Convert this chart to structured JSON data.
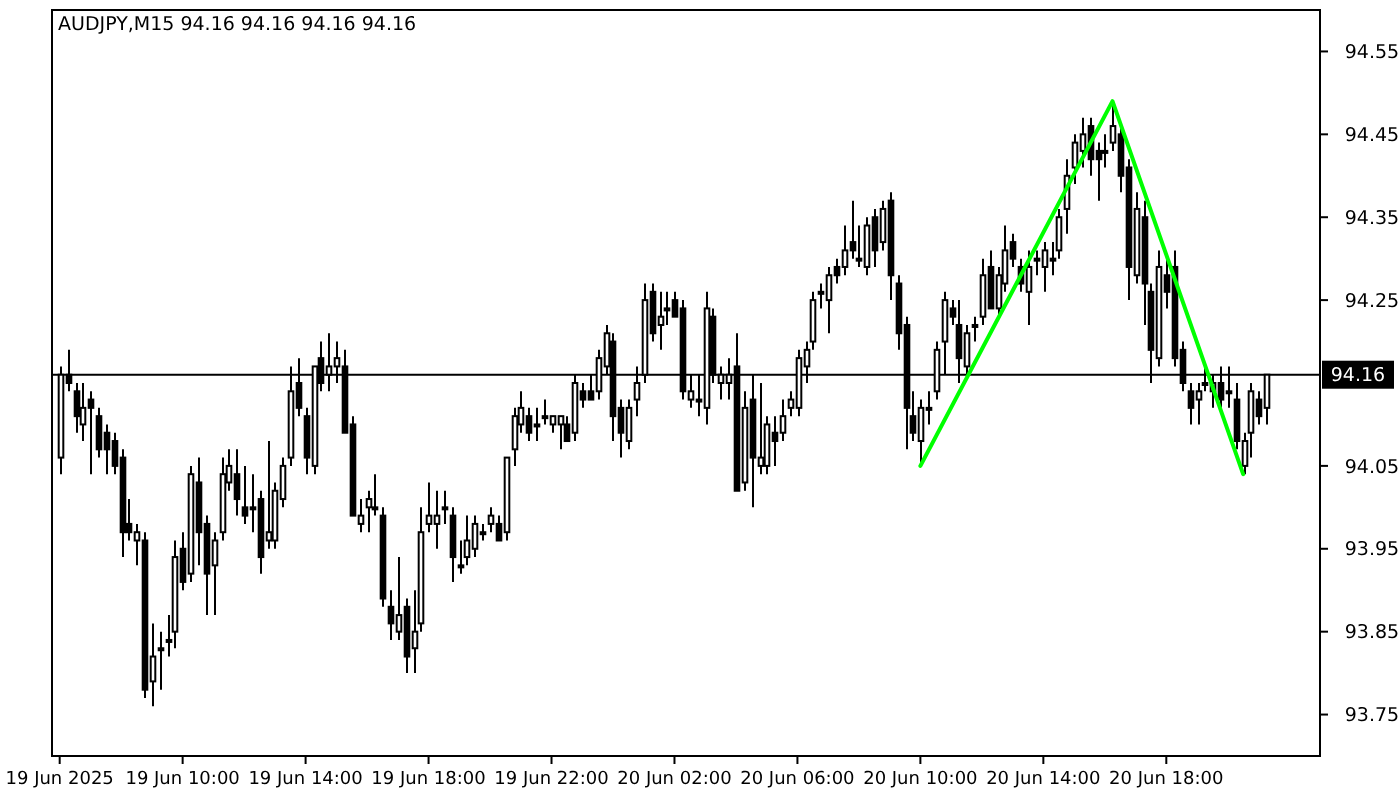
{
  "chart_data": {
    "type": "candlestick",
    "title": "AUDJPY,M15  94.16 94.16 94.16 94.16",
    "x": [
      "2025-06-19T06:00",
      "2025-06-19T06:15",
      "2025-06-19T06:30",
      "2025-06-19T06:45",
      "2025-06-19T07:00",
      "2025-06-19T07:15",
      "2025-06-19T07:30",
      "2025-06-19T07:45",
      "2025-06-19T08:00",
      "2025-06-19T08:15",
      "2025-06-19T08:30",
      "2025-06-19T08:45",
      "2025-06-19T09:00",
      "2025-06-19T09:15",
      "2025-06-19T09:30",
      "2025-06-19T09:45",
      "2025-06-19T10:00",
      "2025-06-19T10:15",
      "2025-06-19T10:30",
      "2025-06-19T10:45",
      "2025-06-19T11:00",
      "2025-06-19T11:15",
      "2025-06-19T11:30",
      "2025-06-19T11:45",
      "2025-06-19T12:00",
      "2025-06-19T12:15",
      "2025-06-19T12:30",
      "2025-06-19T12:45",
      "2025-06-19T13:00",
      "2025-06-19T13:15",
      "2025-06-19T13:30",
      "2025-06-19T13:45",
      "2025-06-19T14:00",
      "2025-06-19T14:15",
      "2025-06-19T14:30",
      "2025-06-19T14:45",
      "2025-06-19T15:00",
      "2025-06-19T15:15",
      "2025-06-19T15:30",
      "2025-06-19T15:45",
      "2025-06-19T16:00",
      "2025-06-19T16:15",
      "2025-06-19T16:30",
      "2025-06-19T16:45",
      "2025-06-19T17:00",
      "2025-06-19T17:15",
      "2025-06-19T17:30",
      "2025-06-19T17:45",
      "2025-06-19T18:00",
      "2025-06-19T18:15",
      "2025-06-19T18:30",
      "2025-06-19T18:45",
      "2025-06-19T19:00",
      "2025-06-19T19:15",
      "2025-06-19T19:30",
      "2025-06-19T19:45",
      "2025-06-19T20:00",
      "2025-06-19T20:15",
      "2025-06-19T20:30",
      "2025-06-19T20:45",
      "2025-06-19T21:00",
      "2025-06-19T21:15",
      "2025-06-19T21:30",
      "2025-06-19T21:45",
      "2025-06-19T22:00",
      "2025-06-19T22:15",
      "2025-06-19T22:30",
      "2025-06-19T22:45",
      "2025-06-19T23:00",
      "2025-06-19T23:15",
      "2025-06-19T23:30",
      "2025-06-19T23:45",
      "2025-06-20T00:00",
      "2025-06-20T00:15",
      "2025-06-20T00:30",
      "2025-06-20T00:45",
      "2025-06-20T01:00",
      "2025-06-20T01:15",
      "2025-06-20T01:30",
      "2025-06-20T01:45",
      "2025-06-20T02:00",
      "2025-06-20T02:15",
      "2025-06-20T02:30",
      "2025-06-20T02:45",
      "2025-06-20T03:00",
      "2025-06-20T03:15",
      "2025-06-20T03:30",
      "2025-06-20T03:45",
      "2025-06-20T04:00",
      "2025-06-20T04:15",
      "2025-06-20T04:30",
      "2025-06-20T04:45",
      "2025-06-20T05:00",
      "2025-06-20T05:15",
      "2025-06-20T05:30",
      "2025-06-20T05:45",
      "2025-06-20T06:00",
      "2025-06-20T06:15",
      "2025-06-20T06:30",
      "2025-06-20T06:45",
      "2025-06-20T07:00",
      "2025-06-20T07:15",
      "2025-06-20T07:30",
      "2025-06-20T07:45",
      "2025-06-20T08:00",
      "2025-06-20T08:15",
      "2025-06-20T08:30",
      "2025-06-20T08:45",
      "2025-06-20T09:00",
      "2025-06-20T09:15",
      "2025-06-20T09:30",
      "2025-06-20T09:45",
      "2025-06-20T10:00",
      "2025-06-20T10:15",
      "2025-06-20T10:30",
      "2025-06-20T10:45",
      "2025-06-20T11:00",
      "2025-06-20T11:15",
      "2025-06-20T11:30",
      "2025-06-20T11:45",
      "2025-06-20T12:00",
      "2025-06-20T12:15",
      "2025-06-20T12:30",
      "2025-06-20T12:45",
      "2025-06-20T13:00",
      "2025-06-20T13:15",
      "2025-06-20T13:30",
      "2025-06-20T13:45",
      "2025-06-20T14:00",
      "2025-06-20T14:15",
      "2025-06-20T14:30",
      "2025-06-20T14:45",
      "2025-06-20T15:00",
      "2025-06-20T15:15",
      "2025-06-20T15:30",
      "2025-06-20T15:45",
      "2025-06-20T16:00",
      "2025-06-20T16:15",
      "2025-06-20T16:30",
      "2025-06-20T16:45",
      "2025-06-20T17:00",
      "2025-06-20T17:15",
      "2025-06-20T17:30",
      "2025-06-20T17:45",
      "2025-06-20T18:00",
      "2025-06-20T18:15",
      "2025-06-20T18:30",
      "2025-06-20T18:45",
      "2025-06-20T19:00",
      "2025-06-20T19:15",
      "2025-06-20T19:30",
      "2025-06-20T19:45",
      "2025-06-20T20:00",
      "2025-06-20T20:15",
      "2025-06-20T20:30",
      "2025-06-20T20:45",
      "2025-06-20T21:00",
      "2025-06-20T21:15"
    ],
    "ohlc": [
      [
        94.06,
        94.17,
        94.04,
        94.16
      ],
      [
        94.16,
        94.19,
        94.14,
        94.15
      ],
      [
        94.14,
        94.15,
        94.09,
        94.11
      ],
      [
        94.1,
        94.15,
        94.08,
        94.12
      ],
      [
        94.13,
        94.14,
        94.04,
        94.12
      ],
      [
        94.11,
        94.12,
        94.06,
        94.07
      ],
      [
        94.09,
        94.1,
        94.04,
        94.07
      ],
      [
        94.08,
        94.09,
        94.04,
        94.05
      ],
      [
        94.06,
        94.07,
        93.94,
        93.97
      ],
      [
        93.98,
        94.01,
        93.96,
        93.97
      ],
      [
        93.96,
        93.98,
        93.93,
        93.97
      ],
      [
        93.96,
        93.97,
        93.77,
        93.78
      ],
      [
        93.79,
        93.86,
        93.76,
        93.82
      ],
      [
        93.83,
        93.85,
        93.78,
        93.83
      ],
      [
        93.84,
        93.87,
        93.82,
        93.84
      ],
      [
        93.85,
        93.96,
        93.83,
        93.94
      ],
      [
        93.95,
        93.97,
        93.9,
        93.91
      ],
      [
        93.92,
        94.05,
        93.91,
        94.04
      ],
      [
        94.03,
        94.06,
        93.93,
        93.97
      ],
      [
        93.98,
        93.99,
        93.87,
        93.92
      ],
      [
        93.93,
        93.97,
        93.87,
        93.96
      ],
      [
        93.97,
        94.06,
        93.96,
        94.04
      ],
      [
        94.03,
        94.07,
        94.02,
        94.05
      ],
      [
        94.04,
        94.07,
        93.99,
        94.01
      ],
      [
        94.0,
        94.05,
        93.98,
        93.99
      ],
      [
        94.0,
        94.04,
        93.97,
        94.0
      ],
      [
        94.01,
        94.02,
        93.92,
        93.94
      ],
      [
        93.96,
        94.08,
        93.95,
        93.97
      ],
      [
        93.96,
        94.03,
        93.95,
        94.02
      ],
      [
        94.01,
        94.06,
        94.0,
        94.05
      ],
      [
        94.06,
        94.17,
        94.05,
        94.14
      ],
      [
        94.15,
        94.18,
        94.11,
        94.12
      ],
      [
        94.11,
        94.12,
        94.04,
        94.06
      ],
      [
        94.05,
        94.17,
        94.04,
        94.17
      ],
      [
        94.18,
        94.2,
        94.14,
        94.15
      ],
      [
        94.16,
        94.21,
        94.14,
        94.17
      ],
      [
        94.17,
        94.2,
        94.15,
        94.18
      ],
      [
        94.17,
        94.19,
        94.09,
        94.09
      ],
      [
        94.1,
        94.11,
        93.99,
        93.99
      ],
      [
        93.98,
        94.01,
        93.97,
        93.99
      ],
      [
        94.0,
        94.02,
        93.97,
        94.01
      ],
      [
        94.0,
        94.04,
        93.99,
        94.0
      ],
      [
        93.99,
        94.0,
        93.88,
        93.89
      ],
      [
        93.88,
        93.9,
        93.84,
        93.86
      ],
      [
        93.85,
        93.94,
        93.84,
        93.87
      ],
      [
        93.88,
        93.89,
        93.8,
        93.82
      ],
      [
        93.83,
        93.9,
        93.8,
        93.85
      ],
      [
        93.86,
        94.0,
        93.85,
        93.97
      ],
      [
        93.98,
        94.03,
        93.97,
        93.99
      ],
      [
        93.98,
        94.02,
        93.95,
        93.99
      ],
      [
        94.0,
        94.02,
        93.98,
        94.0
      ],
      [
        93.99,
        94.0,
        93.91,
        93.94
      ],
      [
        93.93,
        93.96,
        93.92,
        93.93
      ],
      [
        93.94,
        93.99,
        93.93,
        93.96
      ],
      [
        93.95,
        93.99,
        93.94,
        93.98
      ],
      [
        93.97,
        93.98,
        93.96,
        93.97
      ],
      [
        93.98,
        94.0,
        93.97,
        93.99
      ],
      [
        93.98,
        93.99,
        93.96,
        93.96
      ],
      [
        93.97,
        94.06,
        93.96,
        94.06
      ],
      [
        94.07,
        94.12,
        94.05,
        94.11
      ],
      [
        94.1,
        94.14,
        94.09,
        94.12
      ],
      [
        94.11,
        94.12,
        94.08,
        94.09
      ],
      [
        94.1,
        94.12,
        94.08,
        94.1
      ],
      [
        94.11,
        94.13,
        94.1,
        94.11
      ],
      [
        94.1,
        94.11,
        94.09,
        94.11
      ],
      [
        94.1,
        94.11,
        94.07,
        94.11
      ],
      [
        94.1,
        94.11,
        94.08,
        94.08
      ],
      [
        94.09,
        94.16,
        94.08,
        94.15
      ],
      [
        94.14,
        94.15,
        94.12,
        94.13
      ],
      [
        94.14,
        94.16,
        94.13,
        94.13
      ],
      [
        94.14,
        94.19,
        94.13,
        94.18
      ],
      [
        94.17,
        94.22,
        94.16,
        94.21
      ],
      [
        94.2,
        94.21,
        94.08,
        94.11
      ],
      [
        94.12,
        94.13,
        94.06,
        94.09
      ],
      [
        94.08,
        94.13,
        94.07,
        94.12
      ],
      [
        94.13,
        94.17,
        94.11,
        94.15
      ],
      [
        94.16,
        94.27,
        94.15,
        94.25
      ],
      [
        94.26,
        94.27,
        94.2,
        94.21
      ],
      [
        94.22,
        94.26,
        94.19,
        94.23
      ],
      [
        94.24,
        94.26,
        94.22,
        94.24
      ],
      [
        94.25,
        94.26,
        94.23,
        94.23
      ],
      [
        94.24,
        94.25,
        94.13,
        94.14
      ],
      [
        94.13,
        94.16,
        94.12,
        94.14
      ],
      [
        94.13,
        94.16,
        94.11,
        94.13
      ],
      [
        94.12,
        94.26,
        94.1,
        94.24
      ],
      [
        94.23,
        94.24,
        94.15,
        94.16
      ],
      [
        94.15,
        94.17,
        94.13,
        94.16
      ],
      [
        94.15,
        94.18,
        94.13,
        94.16
      ],
      [
        94.17,
        94.21,
        94.02,
        94.02
      ],
      [
        94.03,
        94.14,
        94.02,
        94.12
      ],
      [
        94.13,
        94.16,
        94.0,
        94.06
      ],
      [
        94.05,
        94.15,
        94.04,
        94.06
      ],
      [
        94.05,
        94.11,
        94.04,
        94.1
      ],
      [
        94.09,
        94.11,
        94.05,
        94.08
      ],
      [
        94.09,
        94.13,
        94.08,
        94.11
      ],
      [
        94.12,
        94.14,
        94.11,
        94.13
      ],
      [
        94.12,
        94.19,
        94.11,
        94.18
      ],
      [
        94.17,
        94.2,
        94.15,
        94.19
      ],
      [
        94.2,
        94.26,
        94.19,
        94.25
      ],
      [
        94.26,
        94.27,
        94.24,
        94.26
      ],
      [
        94.25,
        94.29,
        94.21,
        94.28
      ],
      [
        94.29,
        94.3,
        94.27,
        94.28
      ],
      [
        94.29,
        94.34,
        94.28,
        94.31
      ],
      [
        94.32,
        94.37,
        94.3,
        94.31
      ],
      [
        94.3,
        94.34,
        94.29,
        94.3
      ],
      [
        94.29,
        94.35,
        94.28,
        94.34
      ],
      [
        94.35,
        94.36,
        94.29,
        94.31
      ],
      [
        94.32,
        94.37,
        94.31,
        94.36
      ],
      [
        94.37,
        94.38,
        94.25,
        94.28
      ],
      [
        94.27,
        94.28,
        94.19,
        94.21
      ],
      [
        94.22,
        94.23,
        94.07,
        94.12
      ],
      [
        94.11,
        94.14,
        94.08,
        94.09
      ],
      [
        94.08,
        94.13,
        94.05,
        94.12
      ],
      [
        94.12,
        94.14,
        94.1,
        94.12
      ],
      [
        94.14,
        94.2,
        94.13,
        94.19
      ],
      [
        94.2,
        94.26,
        94.16,
        94.25
      ],
      [
        94.24,
        94.25,
        94.22,
        94.23
      ],
      [
        94.22,
        94.25,
        94.15,
        94.18
      ],
      [
        94.17,
        94.22,
        94.16,
        94.21
      ],
      [
        94.22,
        94.23,
        94.2,
        94.22
      ],
      [
        94.23,
        94.3,
        94.22,
        94.28
      ],
      [
        94.29,
        94.31,
        94.24,
        94.24
      ],
      [
        94.24,
        94.29,
        94.23,
        94.28
      ],
      [
        94.27,
        94.34,
        94.26,
        94.31
      ],
      [
        94.32,
        94.33,
        94.29,
        94.3
      ],
      [
        94.29,
        94.3,
        94.26,
        94.27
      ],
      [
        94.26,
        94.31,
        94.22,
        94.29
      ],
      [
        94.3,
        94.31,
        94.28,
        94.3
      ],
      [
        94.29,
        94.32,
        94.26,
        94.31
      ],
      [
        94.3,
        94.32,
        94.28,
        94.3
      ],
      [
        94.31,
        94.36,
        94.3,
        94.35
      ],
      [
        94.36,
        94.42,
        94.33,
        94.4
      ],
      [
        94.41,
        94.45,
        94.39,
        94.44
      ],
      [
        94.43,
        94.47,
        94.41,
        94.45
      ],
      [
        94.46,
        94.47,
        94.4,
        94.42
      ],
      [
        94.43,
        94.44,
        94.37,
        94.42
      ],
      [
        94.43,
        94.45,
        94.41,
        94.43
      ],
      [
        94.44,
        94.49,
        94.43,
        94.46
      ],
      [
        94.45,
        94.46,
        94.38,
        94.4
      ],
      [
        94.41,
        94.42,
        94.25,
        94.29
      ],
      [
        94.28,
        94.38,
        94.27,
        94.36
      ],
      [
        94.35,
        94.37,
        94.22,
        94.27
      ],
      [
        94.26,
        94.27,
        94.15,
        94.19
      ],
      [
        94.18,
        94.31,
        94.17,
        94.29
      ],
      [
        94.28,
        94.3,
        94.24,
        94.26
      ],
      [
        94.29,
        94.31,
        94.17,
        94.18
      ],
      [
        94.19,
        94.2,
        94.14,
        94.15
      ],
      [
        94.14,
        94.15,
        94.1,
        94.12
      ],
      [
        94.13,
        94.15,
        94.1,
        94.14
      ],
      [
        94.15,
        94.17,
        94.14,
        94.15
      ],
      [
        94.14,
        94.16,
        94.12,
        94.15
      ],
      [
        94.15,
        94.17,
        94.12,
        94.13
      ],
      [
        94.14,
        94.17,
        94.12,
        94.14
      ],
      [
        94.13,
        94.15,
        94.07,
        94.08
      ],
      [
        94.05,
        94.09,
        94.04,
        94.08
      ],
      [
        94.09,
        94.15,
        94.06,
        94.14
      ],
      [
        94.13,
        94.14,
        94.1,
        94.11
      ],
      [
        94.12,
        94.16,
        94.1,
        94.16
      ]
    ],
    "series": [
      {
        "type": "line",
        "color": "#00ff00",
        "x": [
          "2025-06-20T10:00",
          "2025-06-20T16:15",
          "2025-06-20T20:30"
        ],
        "values": [
          94.05,
          94.49,
          94.04
        ]
      }
    ],
    "xlim": [
      "2025-06-19T05:45",
      "2025-06-20T23:00"
    ],
    "xticks": [
      {
        "value": "2025-06-19T06:00",
        "label": "19 Jun 2025"
      },
      {
        "value": "2025-06-19T10:00",
        "label": "19 Jun 10:00"
      },
      {
        "value": "2025-06-19T14:00",
        "label": "19 Jun 14:00"
      },
      {
        "value": "2025-06-19T18:00",
        "label": "19 Jun 18:00"
      },
      {
        "value": "2025-06-19T22:00",
        "label": "19 Jun 22:00"
      },
      {
        "value": "2025-06-20T02:00",
        "label": "20 Jun 02:00"
      },
      {
        "value": "2025-06-20T06:00",
        "label": "20 Jun 06:00"
      },
      {
        "value": "2025-06-20T10:00",
        "label": "20 Jun 10:00"
      },
      {
        "value": "2025-06-20T14:00",
        "label": "20 Jun 14:00"
      },
      {
        "value": "2025-06-20T18:00",
        "label": "20 Jun 18:00"
      }
    ],
    "ylim": [
      93.7,
      94.6
    ],
    "yticks": [
      {
        "value": 93.75,
        "label": "93.75"
      },
      {
        "value": 93.85,
        "label": "93.85"
      },
      {
        "value": 93.95,
        "label": "93.95"
      },
      {
        "value": 94.05,
        "label": "94.05"
      },
      {
        "value": 94.25,
        "label": "94.25"
      },
      {
        "value": 94.35,
        "label": "94.35"
      },
      {
        "value": 94.45,
        "label": "94.45"
      },
      {
        "value": 94.55,
        "label": "94.55"
      }
    ],
    "ref_lines": [
      {
        "axis": "y",
        "value": 94.16,
        "label": "94.16",
        "color": "#000000"
      }
    ]
  }
}
